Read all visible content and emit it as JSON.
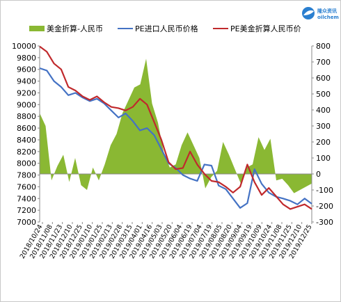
{
  "legend": [
    {
      "name": "美金折算-人民币",
      "color": "#8ab833",
      "kind": "area"
    },
    {
      "name": "PE进口人民币价格",
      "color": "#4472c4",
      "kind": "line"
    },
    {
      "name": "PE美金折算人民币价",
      "color": "#c0292c",
      "kind": "line"
    }
  ],
  "logo": {
    "cn": "隆众资讯",
    "en": "oilchem"
  },
  "chart_data": {
    "type": "line",
    "x_labels": [
      "2018/10/24",
      "2018/11/08",
      "2018/11/23",
      "2018/12/10",
      "2018/12/25",
      "2019/01/10",
      "2019/01/25",
      "2019/02/13",
      "2019/02/28",
      "2019/03/15",
      "2019/04/01",
      "2019/04/16",
      "2019/05/03",
      "2019/05/20",
      "2019/06/04",
      "2019/06/19",
      "2019/07/04",
      "2019/07/19",
      "2019/08/05",
      "2019/08/20",
      "2019/09/04",
      "2019/09/19",
      "2019/10/09",
      "2019/10/24",
      "2019/11/08",
      "2019/11/25",
      "2019/12/10",
      "2019/12/25"
    ],
    "y_left": {
      "min": 7000,
      "max": 10000,
      "step": 200
    },
    "y_right": {
      "min": -300,
      "max": 800,
      "step": 100
    },
    "series": [
      {
        "name": "美金折算-人民币",
        "axis": "right",
        "type": "area",
        "values": [
          380,
          300,
          -40,
          50,
          120,
          -50,
          100,
          -70,
          -100,
          40,
          -40,
          60,
          180,
          250,
          380,
          460,
          540,
          560,
          720,
          440,
          320,
          130,
          40,
          60,
          180,
          260,
          180,
          100,
          -90,
          -20,
          20,
          200,
          120,
          30,
          -60,
          40,
          60,
          230,
          150,
          220,
          -40,
          -30,
          -70,
          -120,
          -100,
          -80,
          -60
        ]
      },
      {
        "name": "PE进口人民币价格",
        "axis": "left",
        "values": [
          9620,
          9580,
          9400,
          9300,
          9160,
          9200,
          9120,
          9060,
          9100,
          9020,
          8900,
          8780,
          8850,
          8720,
          8560,
          8600,
          8480,
          8240,
          8000,
          7920,
          7800,
          7740,
          7700,
          7980,
          7960,
          7620,
          7560,
          7400,
          7240,
          7320,
          7900,
          7650,
          7500,
          7430,
          7400,
          7360,
          7300,
          7400,
          7310
        ]
      },
      {
        "name": "PE美金折算人民币价",
        "axis": "left",
        "values": [
          9990,
          9900,
          9700,
          9600,
          9300,
          9240,
          9140,
          9080,
          9140,
          9040,
          8960,
          8940,
          8900,
          8960,
          9100,
          9000,
          8700,
          8400,
          8020,
          7900,
          7920,
          8200,
          7980,
          7820,
          7700,
          7680,
          7600,
          7500,
          7600,
          7980,
          7680,
          7460,
          7580,
          7440,
          7300,
          7220,
          7260,
          7300,
          7220
        ]
      }
    ]
  }
}
